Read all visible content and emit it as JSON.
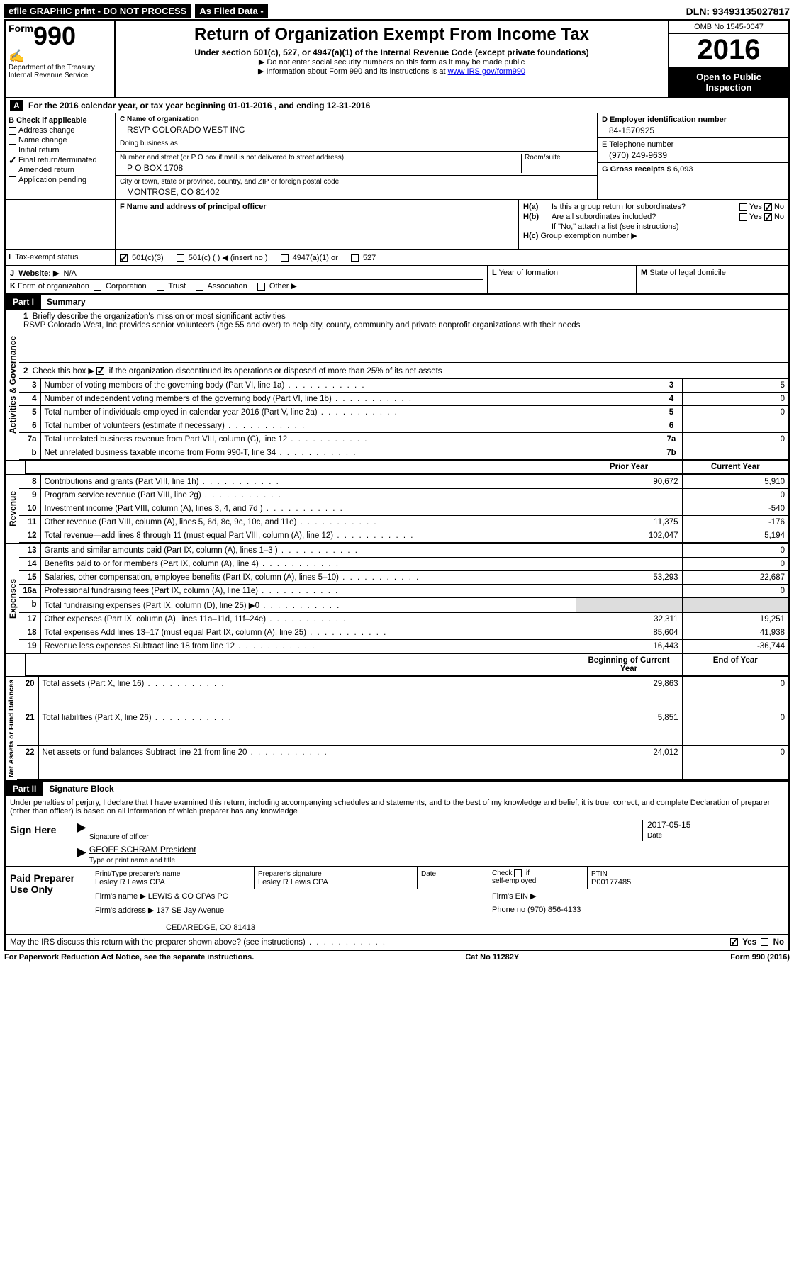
{
  "topbar": {
    "efile": "efile GRAPHIC print - DO NOT PROCESS",
    "asfiled": "As Filed Data -",
    "dln_label": "DLN:",
    "dln": "93493135027817"
  },
  "header": {
    "form_prefix": "Form",
    "form_number": "990",
    "dept1": "Department of the Treasury",
    "dept2": "Internal Revenue Service",
    "title": "Return of Organization Exempt From Income Tax",
    "subtitle": "Under section 501(c), 527, or 4947(a)(1) of the Internal Revenue Code (except private foundations)",
    "note1": "▶ Do not enter social security numbers on this form as it may be made public",
    "note2_a": "▶ Information about Form 990 and its instructions is at ",
    "note2_link": "www IRS gov/form990",
    "omb": "OMB No  1545-0047",
    "year": "2016",
    "open1": "Open to Public",
    "open2": "Inspection"
  },
  "rowA": {
    "label": "A",
    "text_a": "For the 2016 calendar year, or tax year beginning ",
    "begin": "01-01-2016",
    "text_b": "  , and ending ",
    "end": "12-31-2016"
  },
  "colB": {
    "head": "B Check if applicable",
    "items": [
      "Address change",
      "Name change",
      "Initial return",
      "Final return/terminated",
      "Amended return",
      "Application pending"
    ],
    "checked_index": 3
  },
  "colC": {
    "name_label": "C Name of organization",
    "name": "RSVP COLORADO WEST INC",
    "dba_label": "Doing business as",
    "dba": "",
    "street_label": "Number and street (or P O  box if mail is not delivered to street address)",
    "room_label": "Room/suite",
    "street": "P O BOX 1708",
    "city_label": "City or town, state or province, country, and ZIP or foreign postal code",
    "city": "MONTROSE, CO  81402",
    "f_label": "F Name and address of principal officer",
    "f_val": ""
  },
  "colD": {
    "d_label": "D Employer identification number",
    "d_val": "84-1570925",
    "e_label": "E Telephone number",
    "e_val": "(970) 249-9639",
    "g_label": "G Gross receipts $",
    "g_val": "6,093"
  },
  "sectionH": {
    "ha_label": "H(a)",
    "ha_text": "Is this a group return for subordinates?",
    "hb_label": "H(b)",
    "hb_text": "Are all subordinates included?",
    "h_note": "If \"No,\" attach a list  (see instructions)",
    "hc_label": "H(c)",
    "hc_text": "Group exemption number ▶",
    "yes": "Yes",
    "no": "No"
  },
  "rowI": {
    "label": "I",
    "text": "Tax-exempt status",
    "opts": [
      "501(c)(3)",
      "501(c) (  ) ◀ (insert no )",
      "4947(a)(1) or",
      "527"
    ],
    "checked": 0
  },
  "rowJ": {
    "label": "J",
    "text": "Website: ▶",
    "val": "N/A"
  },
  "rowK": {
    "label": "K",
    "text": "Form of organization",
    "opts": [
      "Corporation",
      "Trust",
      "Association",
      "Other ▶"
    ]
  },
  "rowL": {
    "label": "L",
    "text": "Year of formation"
  },
  "rowM": {
    "label": "M",
    "text": "State of legal domicile"
  },
  "part1": {
    "num": "Part I",
    "title": "Summary",
    "side_labels": [
      "Activities & Governance",
      "Revenue",
      "Expenses",
      "Net Assets or Fund Balances"
    ],
    "line1_label": "1",
    "line1_text": "Briefly describe the organization's mission or most significant activities",
    "line1_val": "RSVP Colorado West, Inc  provides senior volunteers (age 55 and over) to help city, county, community and private nonprofit organizations with their needs",
    "line2_label": "2",
    "line2_text": "Check this box ▶",
    "line2_text2": "if the organization discontinued its operations or disposed of more than 25% of its net assets",
    "rows_a": [
      {
        "n": "3",
        "t": "Number of voting members of the governing body (Part VI, line 1a)",
        "k": "3",
        "v": "5"
      },
      {
        "n": "4",
        "t": "Number of independent voting members of the governing body (Part VI, line 1b)",
        "k": "4",
        "v": "0"
      },
      {
        "n": "5",
        "t": "Total number of individuals employed in calendar year 2016 (Part V, line 2a)",
        "k": "5",
        "v": "0"
      },
      {
        "n": "6",
        "t": "Total number of volunteers (estimate if necessary)",
        "k": "6",
        "v": ""
      },
      {
        "n": "7a",
        "t": "Total unrelated business revenue from Part VIII, column (C), line 12",
        "k": "7a",
        "v": "0"
      },
      {
        "n": "b",
        "t": "Net unrelated business taxable income from Form 990-T, line 34",
        "k": "7b",
        "v": ""
      }
    ],
    "col_hdrs": [
      "Prior Year",
      "Current Year"
    ],
    "rows_rev": [
      {
        "n": "8",
        "t": "Contributions and grants (Part VIII, line 1h)",
        "p": "90,672",
        "c": "5,910"
      },
      {
        "n": "9",
        "t": "Program service revenue (Part VIII, line 2g)",
        "p": "",
        "c": "0"
      },
      {
        "n": "10",
        "t": "Investment income (Part VIII, column (A), lines 3, 4, and 7d )",
        "p": "",
        "c": "-540"
      },
      {
        "n": "11",
        "t": "Other revenue (Part VIII, column (A), lines 5, 6d, 8c, 9c, 10c, and 11e)",
        "p": "11,375",
        "c": "-176"
      },
      {
        "n": "12",
        "t": "Total revenue—add lines 8 through 11 (must equal Part VIII, column (A), line 12)",
        "p": "102,047",
        "c": "5,194"
      }
    ],
    "rows_exp": [
      {
        "n": "13",
        "t": "Grants and similar amounts paid (Part IX, column (A), lines 1–3 )",
        "p": "",
        "c": "0"
      },
      {
        "n": "14",
        "t": "Benefits paid to or for members (Part IX, column (A), line 4)",
        "p": "",
        "c": "0"
      },
      {
        "n": "15",
        "t": "Salaries, other compensation, employee benefits (Part IX, column (A), lines 5–10)",
        "p": "53,293",
        "c": "22,687"
      },
      {
        "n": "16a",
        "t": "Professional fundraising fees (Part IX, column (A), line 11e)",
        "p": "",
        "c": "0"
      },
      {
        "n": "b",
        "t": "Total fundraising expenses (Part IX, column (D), line 25) ▶0",
        "p": "shade",
        "c": "shade"
      },
      {
        "n": "17",
        "t": "Other expenses (Part IX, column (A), lines 11a–11d, 11f–24e)",
        "p": "32,311",
        "c": "19,251"
      },
      {
        "n": "18",
        "t": "Total expenses  Add lines 13–17 (must equal Part IX, column (A), line 25)",
        "p": "85,604",
        "c": "41,938"
      },
      {
        "n": "19",
        "t": "Revenue less expenses  Subtract line 18 from line 12",
        "p": "16,443",
        "c": "-36,744"
      }
    ],
    "col_hdrs2": [
      "Beginning of Current Year",
      "End of Year"
    ],
    "rows_net": [
      {
        "n": "20",
        "t": "Total assets (Part X, line 16)",
        "p": "29,863",
        "c": "0"
      },
      {
        "n": "21",
        "t": "Total liabilities (Part X, line 26)",
        "p": "5,851",
        "c": "0"
      },
      {
        "n": "22",
        "t": "Net assets or fund balances  Subtract line 21 from line 20",
        "p": "24,012",
        "c": "0"
      }
    ]
  },
  "part2": {
    "num": "Part II",
    "title": "Signature Block",
    "decl": "Under penalties of perjury, I declare that I have examined this return, including accompanying schedules and statements, and to the best of my knowledge and belief, it is true, correct, and complete  Declaration of preparer (other than officer) is based on all information of which preparer has any knowledge",
    "sign_here": "Sign Here",
    "sig_officer": "Signature of officer",
    "date_label": "Date",
    "date_val": "2017-05-15",
    "officer_name": "GEOFF SCHRAM President",
    "type_label": "Type or print name and title",
    "paid": "Paid Preparer Use Only",
    "prep_name_label": "Print/Type preparer's name",
    "prep_name": "Lesley R Lewis CPA",
    "prep_sig_label": "Preparer's signature",
    "prep_sig": "Lesley R Lewis CPA",
    "prep_date_label": "Date",
    "self_emp": "Check         if self-employed",
    "ptin_label": "PTIN",
    "ptin": "P00177485",
    "firm_name_label": "Firm's name    ▶",
    "firm_name": "LEWIS & CO CPAs PC",
    "firm_ein_label": "Firm's EIN ▶",
    "firm_addr_label": "Firm's address ▶",
    "firm_addr1": "137 SE Jay Avenue",
    "firm_addr2": "CEDAREDGE, CO  81413",
    "phone_label": "Phone no",
    "phone": "(970) 856-4133",
    "discuss": "May the IRS discuss this return with the preparer shown above? (see instructions)",
    "yes": "Yes",
    "no": "No"
  },
  "footer": {
    "left": "For Paperwork Reduction Act Notice, see the separate instructions.",
    "mid": "Cat No  11282Y",
    "right": "Form 990 (2016)"
  }
}
